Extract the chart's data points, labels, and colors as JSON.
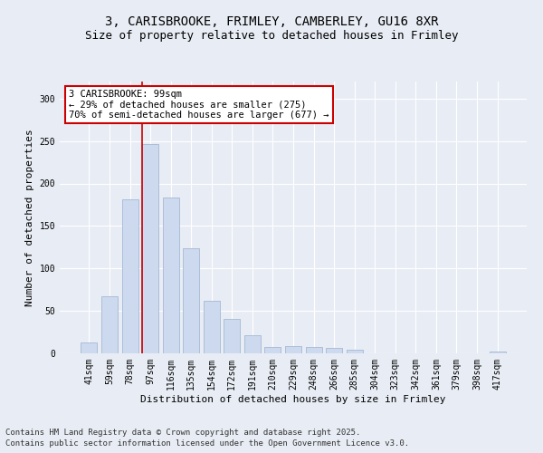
{
  "title_line1": "3, CARISBROOKE, FRIMLEY, CAMBERLEY, GU16 8XR",
  "title_line2": "Size of property relative to detached houses in Frimley",
  "xlabel": "Distribution of detached houses by size in Frimley",
  "ylabel": "Number of detached properties",
  "categories": [
    "41sqm",
    "59sqm",
    "78sqm",
    "97sqm",
    "116sqm",
    "135sqm",
    "154sqm",
    "172sqm",
    "191sqm",
    "210sqm",
    "229sqm",
    "248sqm",
    "266sqm",
    "285sqm",
    "304sqm",
    "323sqm",
    "342sqm",
    "361sqm",
    "379sqm",
    "398sqm",
    "417sqm"
  ],
  "values": [
    13,
    67,
    181,
    246,
    183,
    124,
    62,
    41,
    21,
    7,
    9,
    7,
    6,
    4,
    0,
    0,
    0,
    0,
    0,
    0,
    2
  ],
  "bar_color": "#ccd9ee",
  "bar_edge_color": "#9ab0cc",
  "vline_x_index": 3,
  "vline_color": "#cc0000",
  "annotation_text": "3 CARISBROOKE: 99sqm\n← 29% of detached houses are smaller (275)\n70% of semi-detached houses are larger (677) →",
  "annotation_box_color": "#ffffff",
  "annotation_box_edge": "#cc0000",
  "ylim": [
    0,
    320
  ],
  "yticks": [
    0,
    50,
    100,
    150,
    200,
    250,
    300
  ],
  "background_color": "#e8edf5",
  "plot_bg_color": "#e8edf5",
  "footer_line1": "Contains HM Land Registry data © Crown copyright and database right 2025.",
  "footer_line2": "Contains public sector information licensed under the Open Government Licence v3.0.",
  "title_fontsize": 10,
  "subtitle_fontsize": 9,
  "axis_label_fontsize": 8,
  "tick_fontsize": 7,
  "annotation_fontsize": 7.5,
  "footer_fontsize": 6.5
}
